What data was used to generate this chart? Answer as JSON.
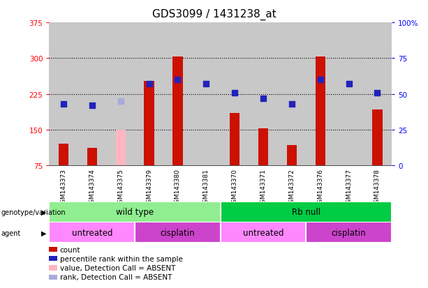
{
  "title": "GDS3099 / 1431238_at",
  "samples": [
    "GSM143373",
    "GSM143374",
    "GSM143375",
    "GSM143379",
    "GSM143380",
    "GSM143381",
    "GSM143370",
    "GSM143371",
    "GSM143372",
    "GSM143376",
    "GSM143377",
    "GSM143378"
  ],
  "counts": [
    120,
    112,
    null,
    252,
    303,
    null,
    185,
    152,
    118,
    303,
    null,
    192
  ],
  "counts_absent": [
    null,
    null,
    150,
    null,
    null,
    null,
    null,
    null,
    null,
    null,
    null,
    null
  ],
  "percentile_ranks_pct": [
    43,
    42,
    null,
    57,
    60,
    57,
    51,
    47,
    43,
    60,
    57,
    51
  ],
  "percentile_ranks_pct_absent": [
    null,
    null,
    45,
    null,
    null,
    null,
    null,
    null,
    null,
    null,
    null,
    null
  ],
  "ylim_left": [
    75,
    375
  ],
  "ylim_right": [
    0,
    100
  ],
  "yticks_left": [
    75,
    150,
    225,
    300,
    375
  ],
  "yticks_right": [
    0,
    25,
    50,
    75,
    100
  ],
  "ytick_labels_left": [
    "75",
    "150",
    "225",
    "300",
    "375"
  ],
  "ytick_labels_right": [
    "0",
    "25",
    "50",
    "75",
    "100%"
  ],
  "genotype_groups": [
    {
      "label": "wild type",
      "start": 0,
      "end": 6,
      "color": "#90EE90"
    },
    {
      "label": "Rb null",
      "start": 6,
      "end": 12,
      "color": "#00CC44"
    }
  ],
  "agent_groups": [
    {
      "label": "untreated",
      "start": 0,
      "end": 3,
      "color": "#FF88FF"
    },
    {
      "label": "cisplatin",
      "start": 3,
      "end": 6,
      "color": "#CC44CC"
    },
    {
      "label": "untreated",
      "start": 6,
      "end": 9,
      "color": "#FF88FF"
    },
    {
      "label": "cisplatin",
      "start": 9,
      "end": 12,
      "color": "#CC44CC"
    }
  ],
  "bar_color_red": "#CC1100",
  "bar_color_pink": "#FFB6C1",
  "dot_color_blue": "#2222BB",
  "dot_color_lightblue": "#AAAADD",
  "background_color": "#C8C8C8",
  "title_fontsize": 11,
  "bar_width": 0.35,
  "dot_size": 40,
  "legend_items": [
    {
      "label": "count",
      "color": "#CC1100"
    },
    {
      "label": "percentile rank within the sample",
      "color": "#2222BB"
    },
    {
      "label": "value, Detection Call = ABSENT",
      "color": "#FFB6C1"
    },
    {
      "label": "rank, Detection Call = ABSENT",
      "color": "#AAAADD"
    }
  ]
}
